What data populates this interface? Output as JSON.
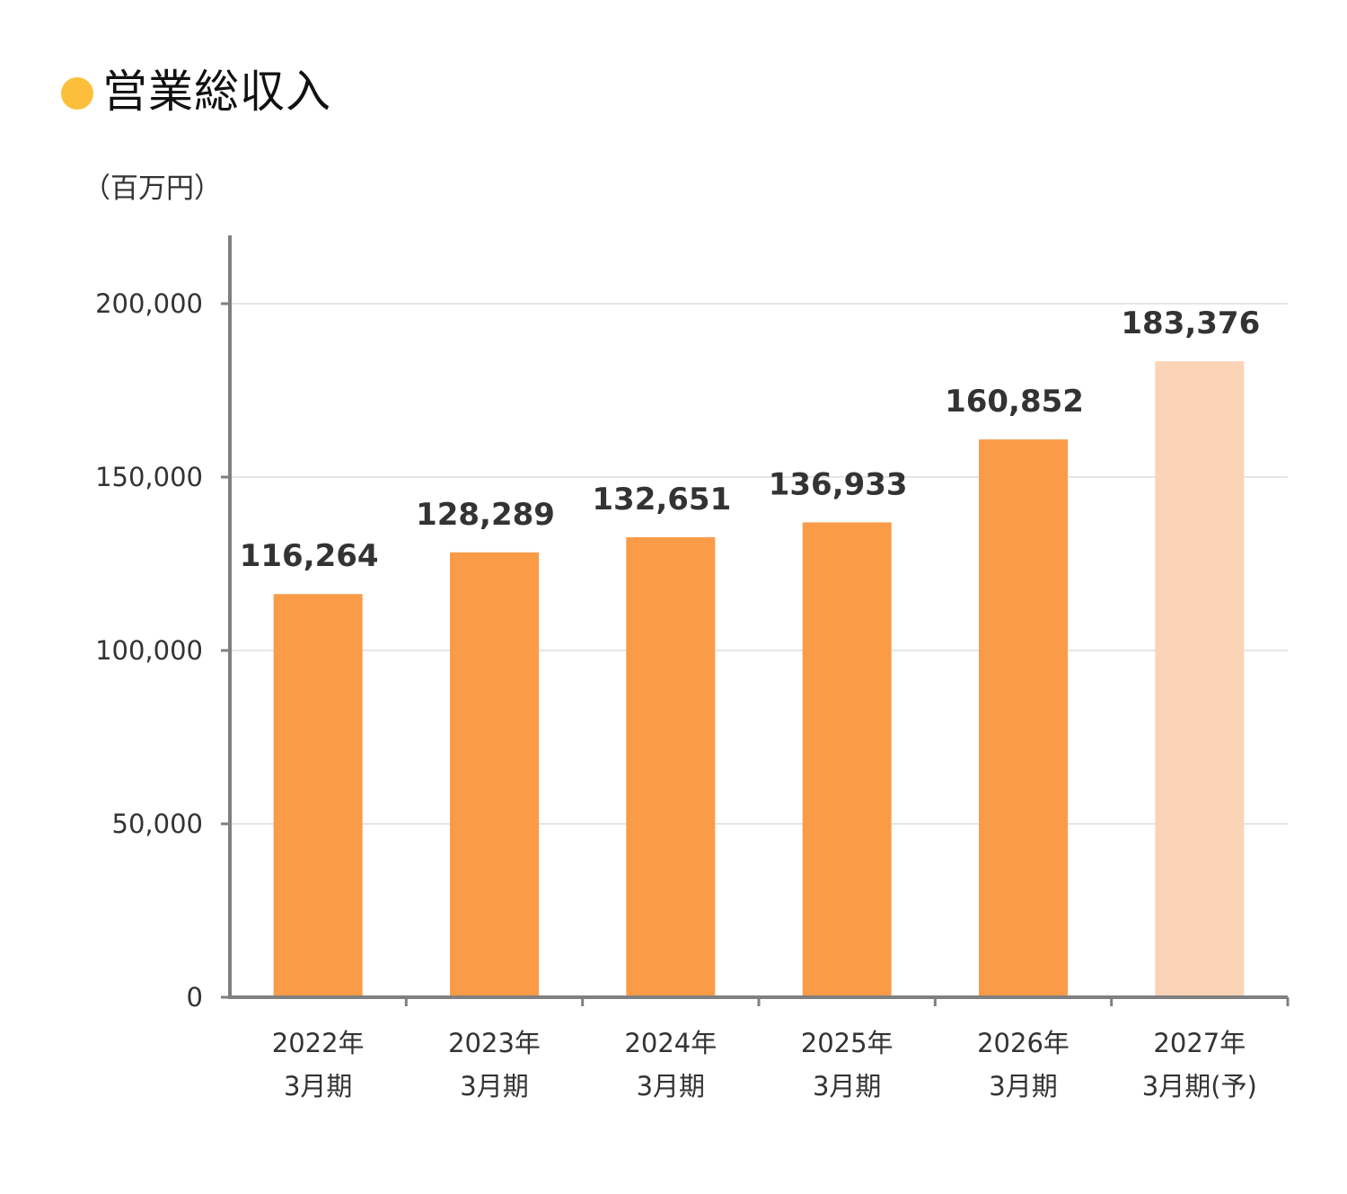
{
  "title": "営業総収入",
  "unit_label": "（百万円）",
  "colors": {
    "title_dot": "#FBBF3B",
    "bar": "#FA9B48",
    "bar_forecast": "#FBD3B6",
    "axis": "#808080",
    "grid": "#DDDDDD"
  },
  "chart_data": {
    "type": "bar",
    "title": "営業総収入",
    "ylabel": "（百万円）",
    "ylim": [
      0,
      220000
    ],
    "yticks": [
      0,
      50000,
      100000,
      150000,
      200000
    ],
    "ytick_labels": [
      "0",
      "50,000",
      "100,000",
      "150,000",
      "200,000"
    ],
    "grid": true,
    "categories": [
      [
        "2022年",
        "3月期"
      ],
      [
        "2023年",
        "3月期"
      ],
      [
        "2024年",
        "3月期"
      ],
      [
        "2025年",
        "3月期"
      ],
      [
        "2026年",
        "3月期"
      ],
      [
        "2027年",
        "3月期(予)"
      ]
    ],
    "values": [
      116264,
      128289,
      132651,
      136933,
      160852,
      183376
    ],
    "value_labels": [
      "116,264",
      "128,289",
      "132,651",
      "136,933",
      "160,852",
      "183,376"
    ],
    "forecast": [
      false,
      false,
      false,
      false,
      false,
      true
    ]
  }
}
